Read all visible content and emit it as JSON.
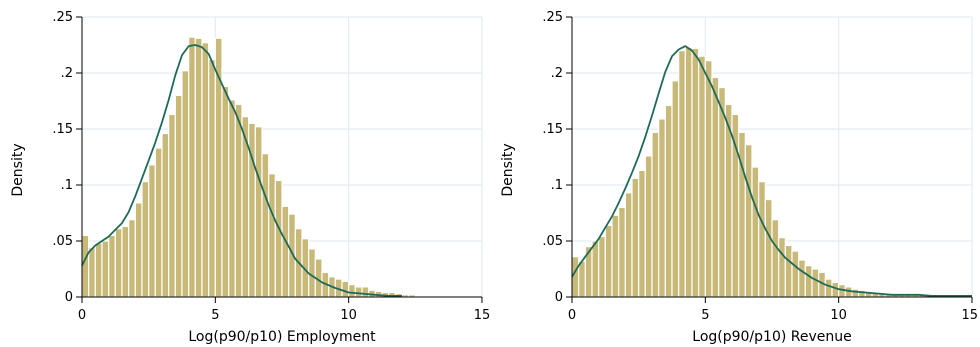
{
  "colors": {
    "bar_fill": "#c8b978",
    "bar_stroke": "#ffffff",
    "density_line": "#1e6a5a",
    "grid": "#e3ecf2",
    "axis": "#000000"
  },
  "chart_data": [
    {
      "type": "bar",
      "subtype": "histogram-with-kernel-density",
      "xlabel": "Log(p90/p10) Employment",
      "ylabel": "Density",
      "xlim": [
        0,
        15
      ],
      "ylim": [
        0,
        0.25
      ],
      "x_ticks": [
        0,
        5,
        10,
        15
      ],
      "x_tick_labels": [
        "0",
        "5",
        "10",
        "15"
      ],
      "y_ticks": [
        0,
        0.05,
        0.1,
        0.15,
        0.2,
        0.25
      ],
      "y_tick_labels": [
        "0",
        ".05",
        ".1",
        ".15",
        ".2",
        ".25"
      ],
      "grid": true,
      "bin_width": 0.25,
      "bins_start": 0,
      "values": [
        0.055,
        0.044,
        0.048,
        0.05,
        0.055,
        0.061,
        0.063,
        0.069,
        0.084,
        0.103,
        0.118,
        0.133,
        0.146,
        0.163,
        0.18,
        0.202,
        0.232,
        0.231,
        0.227,
        0.212,
        0.231,
        0.188,
        0.176,
        0.172,
        0.161,
        0.155,
        0.152,
        0.128,
        0.11,
        0.104,
        0.081,
        0.074,
        0.061,
        0.052,
        0.043,
        0.034,
        0.022,
        0.018,
        0.016,
        0.014,
        0.011,
        0.009,
        0.009,
        0.006,
        0.005,
        0.004,
        0.004,
        0.003,
        0.002,
        0.002,
        0.001,
        0.001,
        0.001,
        0.001
      ],
      "density": {
        "x": [
          0,
          0.25,
          0.5,
          0.75,
          1,
          1.25,
          1.5,
          1.75,
          2,
          2.25,
          2.5,
          2.75,
          3,
          3.25,
          3.5,
          3.75,
          4,
          4.25,
          4.5,
          4.75,
          5,
          5.25,
          5.5,
          5.75,
          6,
          6.25,
          6.5,
          6.75,
          7,
          7.25,
          7.5,
          7.75,
          8,
          8.5,
          9,
          9.5,
          10,
          10.5,
          11,
          11.5,
          12
        ],
        "y": [
          0.028,
          0.04,
          0.046,
          0.05,
          0.054,
          0.06,
          0.066,
          0.076,
          0.09,
          0.106,
          0.122,
          0.138,
          0.156,
          0.176,
          0.198,
          0.216,
          0.224,
          0.225,
          0.223,
          0.217,
          0.203,
          0.19,
          0.177,
          0.165,
          0.15,
          0.133,
          0.115,
          0.098,
          0.082,
          0.068,
          0.056,
          0.045,
          0.034,
          0.021,
          0.013,
          0.008,
          0.004,
          0.003,
          0.002,
          0.001,
          0.001
        ]
      }
    },
    {
      "type": "bar",
      "subtype": "histogram-with-kernel-density",
      "xlabel": "Log(p90/p10) Revenue",
      "ylabel": "Density",
      "xlim": [
        0,
        15
      ],
      "ylim": [
        0,
        0.25
      ],
      "x_ticks": [
        0,
        5,
        10,
        15
      ],
      "x_tick_labels": [
        "0",
        "5",
        "10",
        "15"
      ],
      "y_ticks": [
        0,
        0.05,
        0.1,
        0.15,
        0.2,
        0.25
      ],
      "y_tick_labels": [
        "0",
        ".05",
        ".1",
        ".15",
        ".2",
        ".25"
      ],
      "grid": true,
      "bin_width": 0.25,
      "bins_start": 0,
      "values": [
        0.036,
        0.032,
        0.045,
        0.05,
        0.054,
        0.064,
        0.073,
        0.08,
        0.093,
        0.106,
        0.113,
        0.126,
        0.147,
        0.159,
        0.171,
        0.193,
        0.22,
        0.223,
        0.222,
        0.215,
        0.211,
        0.196,
        0.187,
        0.172,
        0.163,
        0.147,
        0.136,
        0.116,
        0.103,
        0.087,
        0.069,
        0.053,
        0.046,
        0.041,
        0.033,
        0.028,
        0.025,
        0.022,
        0.016,
        0.013,
        0.011,
        0.009,
        0.007,
        0.006,
        0.005,
        0.004,
        0.003,
        0.003,
        0.002,
        0.002,
        0.002,
        0.002,
        0.002,
        0.001,
        0.001,
        0.001,
        0.001,
        0.001,
        0.001,
        0.001
      ],
      "density": {
        "x": [
          0,
          0.25,
          0.5,
          0.75,
          1,
          1.25,
          1.5,
          1.75,
          2,
          2.25,
          2.5,
          2.75,
          3,
          3.25,
          3.5,
          3.75,
          4,
          4.25,
          4.5,
          4.75,
          5,
          5.25,
          5.5,
          5.75,
          6,
          6.25,
          6.5,
          6.75,
          7,
          7.25,
          7.5,
          7.75,
          8,
          8.5,
          9,
          9.5,
          10,
          10.5,
          11,
          11.5,
          12,
          12.5,
          13,
          13.5,
          14,
          14.5,
          15
        ],
        "y": [
          0.018,
          0.028,
          0.036,
          0.044,
          0.052,
          0.062,
          0.072,
          0.084,
          0.097,
          0.111,
          0.126,
          0.143,
          0.162,
          0.182,
          0.201,
          0.215,
          0.221,
          0.224,
          0.22,
          0.212,
          0.2,
          0.188,
          0.174,
          0.16,
          0.144,
          0.126,
          0.107,
          0.089,
          0.073,
          0.061,
          0.05,
          0.042,
          0.035,
          0.025,
          0.017,
          0.011,
          0.007,
          0.005,
          0.004,
          0.003,
          0.002,
          0.002,
          0.002,
          0.001,
          0.001,
          0.001,
          0.001
        ]
      }
    }
  ]
}
